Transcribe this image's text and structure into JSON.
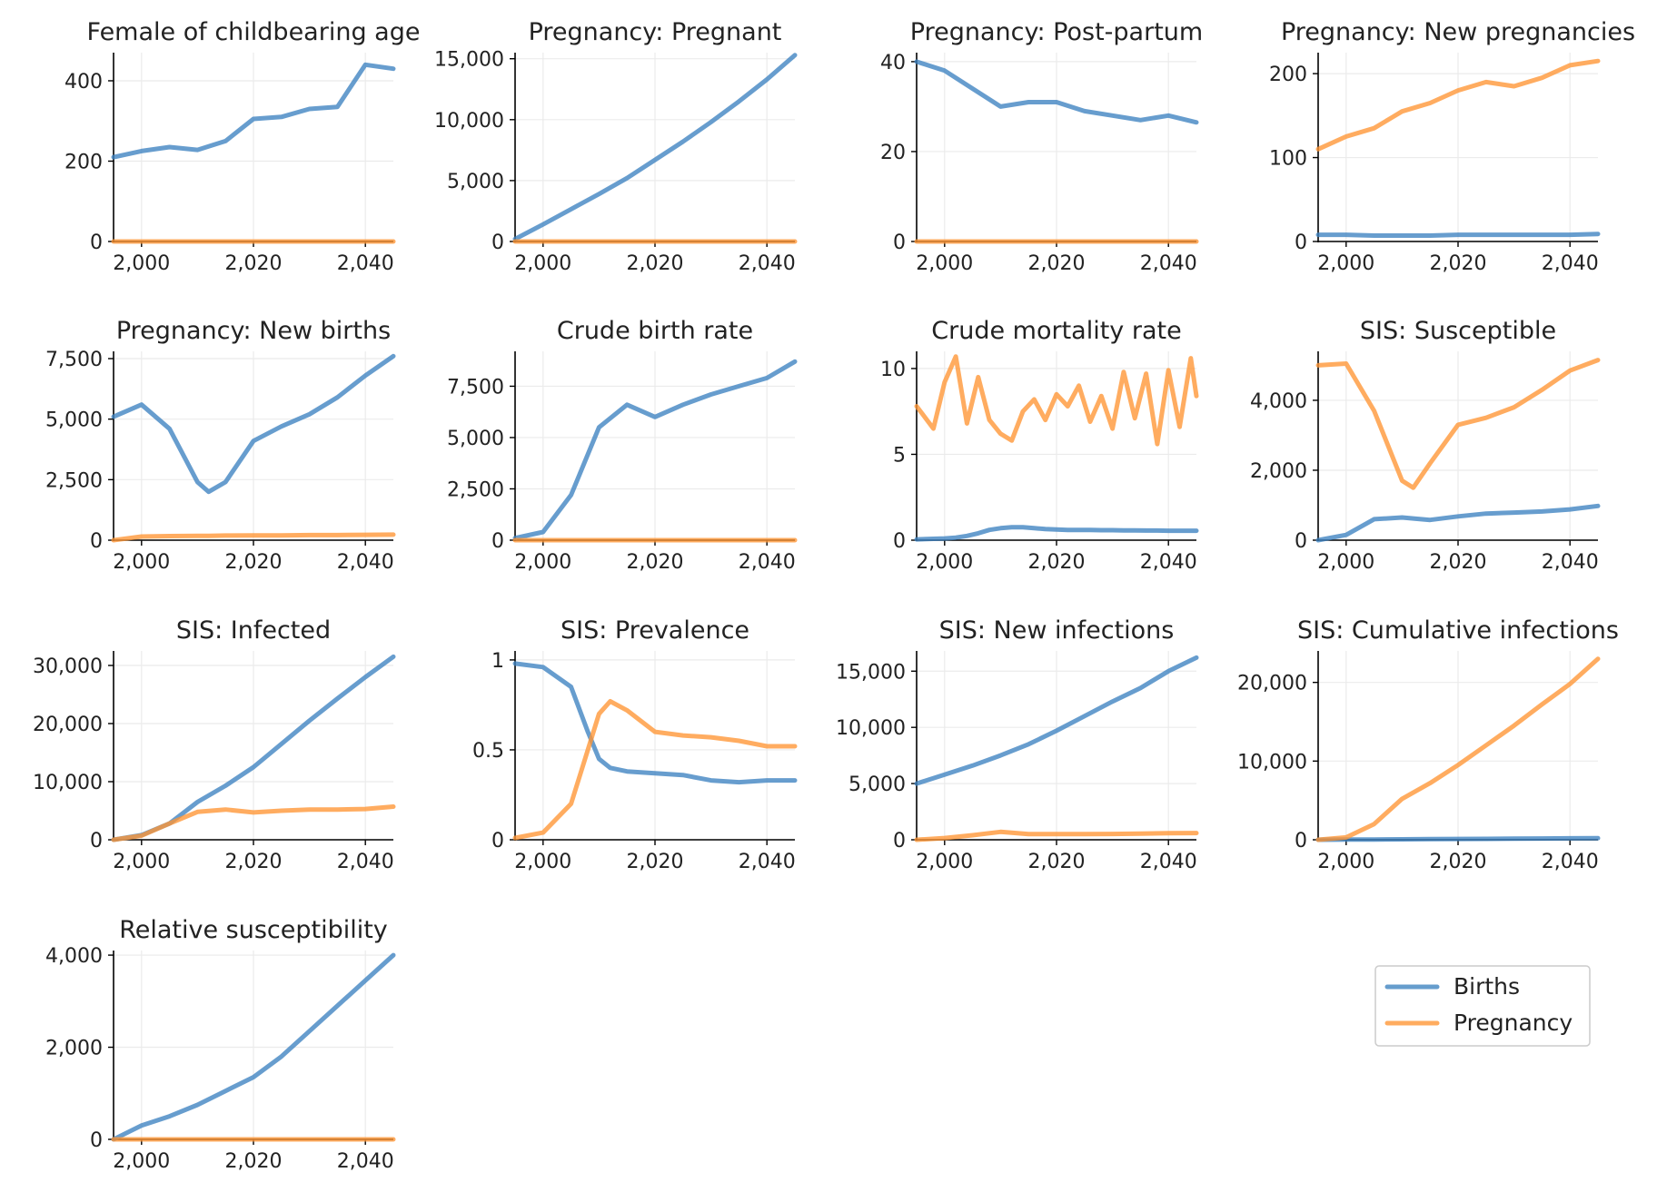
{
  "colors": {
    "births": "#3c82c0",
    "pregnancy": "#ff9533"
  },
  "legend": {
    "placement": "bottom-right",
    "entries": [
      "Births",
      "Pregnancy"
    ]
  },
  "chart_data": [
    {
      "type": "line",
      "title": "Female of childbearing age",
      "xlim": [
        1995,
        2045
      ],
      "ylim": [
        0,
        470
      ],
      "xticks": [
        2000,
        2020,
        2040
      ],
      "yticks": [
        0,
        200,
        400
      ],
      "grid": true,
      "x": [
        1995,
        2000,
        2005,
        2010,
        2015,
        2020,
        2025,
        2030,
        2035,
        2040,
        2045
      ],
      "series": [
        {
          "name": "Births",
          "values": [
            210,
            225,
            235,
            228,
            250,
            305,
            310,
            330,
            335,
            440,
            430
          ]
        },
        {
          "name": "Pregnancy",
          "values": [
            0,
            0,
            0,
            0,
            0,
            0,
            0,
            0,
            0,
            0,
            0
          ]
        }
      ]
    },
    {
      "type": "line",
      "title": "Pregnancy: Pregnant",
      "xlim": [
        1995,
        2045
      ],
      "ylim": [
        0,
        15500
      ],
      "xticks": [
        2000,
        2020,
        2040
      ],
      "yticks": [
        0,
        5000,
        10000,
        15000
      ],
      "grid": true,
      "x": [
        1995,
        2000,
        2005,
        2010,
        2015,
        2020,
        2025,
        2030,
        2035,
        2040,
        2045
      ],
      "series": [
        {
          "name": "Births",
          "values": [
            200,
            1400,
            2650,
            3900,
            5200,
            6700,
            8200,
            9800,
            11500,
            13300,
            15300
          ]
        },
        {
          "name": "Pregnancy",
          "values": [
            0,
            0,
            0,
            0,
            0,
            0,
            0,
            0,
            0,
            0,
            0
          ]
        }
      ]
    },
    {
      "type": "line",
      "title": "Pregnancy: Post-partum",
      "xlim": [
        1995,
        2045
      ],
      "ylim": [
        0,
        42
      ],
      "xticks": [
        2000,
        2020,
        2040
      ],
      "yticks": [
        0,
        20,
        40
      ],
      "grid": true,
      "x": [
        1995,
        2000,
        2005,
        2010,
        2015,
        2020,
        2025,
        2030,
        2035,
        2040,
        2045
      ],
      "series": [
        {
          "name": "Births",
          "values": [
            40,
            38,
            34,
            30,
            31,
            31,
            29,
            28,
            27,
            28,
            26.5
          ]
        },
        {
          "name": "Pregnancy",
          "values": [
            0,
            0,
            0,
            0,
            0,
            0,
            0,
            0,
            0,
            0,
            0
          ]
        }
      ]
    },
    {
      "type": "line",
      "title": "Pregnancy: New pregnancies",
      "xlim": [
        1995,
        2045
      ],
      "ylim": [
        0,
        225
      ],
      "xticks": [
        2000,
        2020,
        2040
      ],
      "yticks": [
        0,
        100,
        200
      ],
      "grid": true,
      "x": [
        1995,
        2000,
        2005,
        2010,
        2015,
        2020,
        2025,
        2030,
        2035,
        2040,
        2045
      ],
      "series": [
        {
          "name": "Births",
          "values": [
            8,
            8,
            7,
            7,
            7,
            8,
            8,
            8,
            8,
            8,
            9
          ]
        },
        {
          "name": "Pregnancy",
          "values": [
            110,
            125,
            135,
            155,
            165,
            180,
            190,
            185,
            195,
            210,
            215
          ]
        }
      ]
    },
    {
      "type": "line",
      "title": "Pregnancy: New births",
      "xlim": [
        1995,
        2045
      ],
      "ylim": [
        0,
        7800
      ],
      "xticks": [
        2000,
        2020,
        2040
      ],
      "yticks": [
        0,
        2500,
        5000,
        7500
      ],
      "grid": true,
      "x": [
        1995,
        2000,
        2005,
        2010,
        2012,
        2015,
        2020,
        2025,
        2030,
        2035,
        2040,
        2045
      ],
      "series": [
        {
          "name": "Births",
          "values": [
            5100,
            5600,
            4600,
            2400,
            2000,
            2400,
            4100,
            4700,
            5200,
            5900,
            6800,
            7600
          ]
        },
        {
          "name": "Pregnancy",
          "values": [
            0,
            150,
            170,
            180,
            180,
            190,
            200,
            200,
            210,
            210,
            220,
            230
          ]
        }
      ]
    },
    {
      "type": "line",
      "title": "Crude birth rate",
      "xlim": [
        1995,
        2045
      ],
      "ylim": [
        0,
        9200
      ],
      "xticks": [
        2000,
        2020,
        2040
      ],
      "yticks": [
        0,
        2500,
        5000,
        7500
      ],
      "grid": true,
      "x": [
        1995,
        2000,
        2005,
        2010,
        2015,
        2020,
        2025,
        2030,
        2035,
        2040,
        2045
      ],
      "series": [
        {
          "name": "Births",
          "values": [
            100,
            400,
            2200,
            5500,
            6600,
            6000,
            6600,
            7100,
            7500,
            7900,
            8700
          ]
        },
        {
          "name": "Pregnancy",
          "values": [
            0,
            0,
            0,
            0,
            0,
            0,
            0,
            0,
            0,
            0,
            0
          ]
        }
      ]
    },
    {
      "type": "line",
      "title": "Crude mortality rate",
      "xlim": [
        1995,
        2045
      ],
      "ylim": [
        0,
        11
      ],
      "xticks": [
        2000,
        2020,
        2040
      ],
      "yticks": [
        0,
        5,
        10
      ],
      "grid": true,
      "x": [
        1995,
        1998,
        2000,
        2002,
        2004,
        2006,
        2008,
        2010,
        2012,
        2014,
        2016,
        2018,
        2020,
        2022,
        2024,
        2026,
        2028,
        2030,
        2032,
        2034,
        2036,
        2038,
        2040,
        2042,
        2044,
        2045
      ],
      "series": [
        {
          "name": "Births",
          "values": [
            0.05,
            0.08,
            0.1,
            0.15,
            0.25,
            0.4,
            0.6,
            0.7,
            0.75,
            0.75,
            0.7,
            0.65,
            0.62,
            0.6,
            0.6,
            0.6,
            0.58,
            0.58,
            0.57,
            0.57,
            0.56,
            0.56,
            0.55,
            0.55,
            0.55,
            0.55
          ]
        },
        {
          "name": "Pregnancy",
          "values": [
            7.8,
            6.5,
            9.2,
            10.7,
            6.8,
            9.5,
            7.0,
            6.2,
            5.8,
            7.5,
            8.2,
            7.0,
            8.5,
            7.8,
            9.0,
            6.9,
            8.4,
            6.5,
            9.8,
            7.1,
            9.7,
            5.6,
            9.9,
            6.6,
            10.6,
            8.4
          ]
        }
      ]
    },
    {
      "type": "line",
      "title": "SIS: Susceptible",
      "xlim": [
        1995,
        2045
      ],
      "ylim": [
        0,
        5400
      ],
      "xticks": [
        2000,
        2020,
        2040
      ],
      "yticks": [
        0,
        2000,
        4000
      ],
      "grid": true,
      "x": [
        1995,
        2000,
        2005,
        2010,
        2012,
        2015,
        2020,
        2025,
        2030,
        2035,
        2040,
        2045
      ],
      "series": [
        {
          "name": "Births",
          "values": [
            0,
            150,
            600,
            650,
            620,
            580,
            680,
            760,
            790,
            820,
            880,
            980
          ]
        },
        {
          "name": "Pregnancy",
          "values": [
            5000,
            5050,
            3700,
            1700,
            1500,
            2200,
            3300,
            3500,
            3800,
            4300,
            4850,
            5150
          ]
        }
      ]
    },
    {
      "type": "line",
      "title": "SIS: Infected",
      "xlim": [
        1995,
        2045
      ],
      "ylim": [
        0,
        32500
      ],
      "xticks": [
        2000,
        2020,
        2040
      ],
      "yticks": [
        0,
        10000,
        20000,
        30000
      ],
      "grid": true,
      "x": [
        1995,
        2000,
        2005,
        2010,
        2015,
        2020,
        2025,
        2030,
        2035,
        2040,
        2045
      ],
      "series": [
        {
          "name": "Births",
          "values": [
            0,
            800,
            2800,
            6500,
            9300,
            12500,
            16500,
            20500,
            24300,
            28000,
            31500
          ]
        },
        {
          "name": "Pregnancy",
          "values": [
            0,
            700,
            2800,
            4800,
            5200,
            4700,
            5000,
            5200,
            5200,
            5300,
            5700
          ]
        }
      ]
    },
    {
      "type": "line",
      "title": "SIS: Prevalence",
      "xlim": [
        1995,
        2045
      ],
      "ylim": [
        0,
        1.05
      ],
      "xticks": [
        2000,
        2020,
        2040
      ],
      "yticks": [
        0,
        0.5,
        1
      ],
      "grid": true,
      "x": [
        1995,
        2000,
        2005,
        2008,
        2010,
        2012,
        2015,
        2020,
        2025,
        2030,
        2035,
        2040,
        2045
      ],
      "series": [
        {
          "name": "Births",
          "values": [
            0.98,
            0.96,
            0.85,
            0.6,
            0.45,
            0.4,
            0.38,
            0.37,
            0.36,
            0.33,
            0.32,
            0.33,
            0.33
          ]
        },
        {
          "name": "Pregnancy",
          "values": [
            0.01,
            0.04,
            0.2,
            0.5,
            0.7,
            0.77,
            0.72,
            0.6,
            0.58,
            0.57,
            0.55,
            0.52,
            0.52
          ]
        }
      ]
    },
    {
      "type": "line",
      "title": "SIS: New infections",
      "xlim": [
        1995,
        2045
      ],
      "ylim": [
        0,
        16800
      ],
      "xticks": [
        2000,
        2020,
        2040
      ],
      "yticks": [
        0,
        5000,
        10000,
        15000
      ],
      "grid": true,
      "x": [
        1995,
        2000,
        2005,
        2010,
        2015,
        2020,
        2025,
        2030,
        2035,
        2040,
        2045
      ],
      "series": [
        {
          "name": "Births",
          "values": [
            5000,
            5800,
            6600,
            7500,
            8500,
            9700,
            11000,
            12300,
            13500,
            15000,
            16200
          ]
        },
        {
          "name": "Pregnancy",
          "values": [
            0,
            150,
            400,
            700,
            500,
            500,
            500,
            520,
            550,
            580,
            600
          ]
        }
      ]
    },
    {
      "type": "line",
      "title": "SIS: Cumulative infections",
      "xlim": [
        1995,
        2045
      ],
      "ylim": [
        0,
        24000
      ],
      "xticks": [
        2000,
        2020,
        2040
      ],
      "yticks": [
        0,
        10000,
        20000
      ],
      "grid": true,
      "x": [
        1995,
        2000,
        2005,
        2010,
        2015,
        2020,
        2025,
        2030,
        2035,
        2040,
        2045
      ],
      "series": [
        {
          "name": "Births",
          "values": [
            0,
            20,
            40,
            60,
            80,
            100,
            120,
            140,
            160,
            180,
            200
          ]
        },
        {
          "name": "Pregnancy",
          "values": [
            0,
            300,
            2000,
            5200,
            7200,
            9500,
            12000,
            14500,
            17200,
            19800,
            23000
          ]
        }
      ]
    },
    {
      "type": "line",
      "title": "Relative susceptibility",
      "xlim": [
        1995,
        2045
      ],
      "ylim": [
        0,
        4100
      ],
      "xticks": [
        2000,
        2020,
        2040
      ],
      "yticks": [
        0,
        2000,
        4000
      ],
      "grid": true,
      "x": [
        1995,
        2000,
        2005,
        2010,
        2015,
        2020,
        2025,
        2030,
        2035,
        2040,
        2045
      ],
      "series": [
        {
          "name": "Births",
          "values": [
            0,
            300,
            500,
            750,
            1050,
            1350,
            1800,
            2350,
            2900,
            3450,
            4000
          ]
        },
        {
          "name": "Pregnancy",
          "values": [
            0,
            0,
            0,
            0,
            0,
            0,
            0,
            0,
            0,
            0,
            0
          ]
        }
      ]
    }
  ]
}
